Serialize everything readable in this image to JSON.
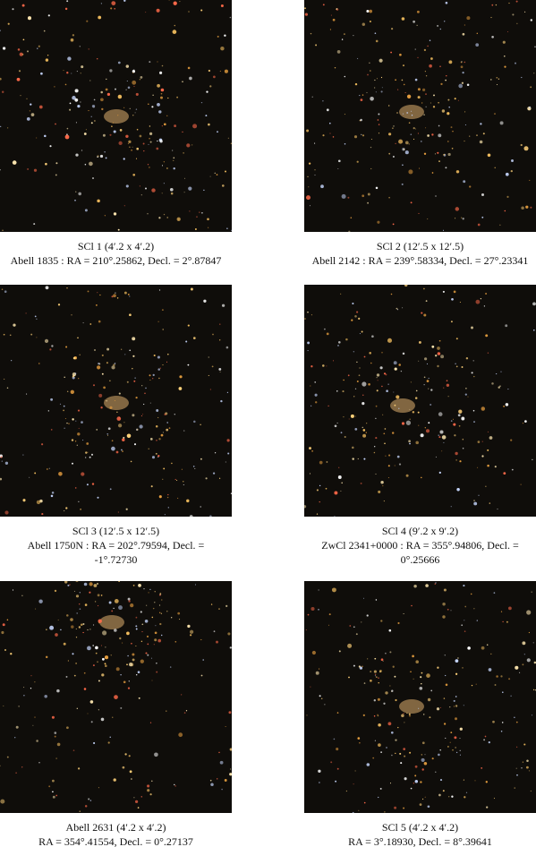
{
  "panels": [
    {
      "lines": [
        "SCl 1 (4′.2 x 4′.2)",
        "Abell 1835 : RA = 210°.25862, Decl. = 2°.87847"
      ]
    },
    {
      "lines": [
        "SCl 2 (12′.5 x 12′.5)",
        "Abell 2142 : RA = 239°.58334, Decl. = 27°.23341"
      ]
    },
    {
      "lines": [
        "SCl 3 (12′.5 x 12′.5)",
        "Abell 1750N : RA = 202°.79594, Decl. =",
        "-1°.72730"
      ]
    },
    {
      "lines": [
        "SCl 4 (9′.2 x 9′.2)",
        "ZwCl 2341+0000 : RA = 355°.94806, Decl. =",
        "0°.25666"
      ]
    },
    {
      "lines": [
        "Abell 2631 (4′.2 x 4′.2)",
        "RA = 354°.41554, Decl. = 0°.27137"
      ]
    },
    {
      "lines": [
        "SCl 5 (4′.2 x 4′.2)",
        "RA = 3°.18930, Decl. = 8°.39641"
      ]
    }
  ]
}
